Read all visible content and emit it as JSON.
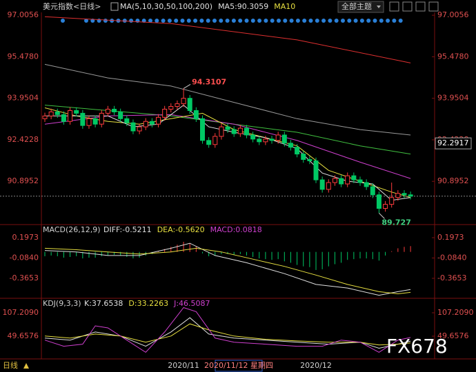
{
  "ui": {
    "theme_button": "全部主题",
    "period": "日线",
    "cursor_date": "2020/11/12 星期四",
    "watermark": "FX678"
  },
  "chart_data": [
    {
      "type": "candlestick",
      "title": "美元指数<日线>",
      "legend": [
        {
          "text": "MA(5,10,30,50,100,200)",
          "color": "#e0e0e0"
        },
        {
          "text": "MA5:90.3059",
          "color": "#e0e0e0"
        },
        {
          "text": "MA10",
          "color": "#e8e040"
        }
      ],
      "categories": [
        null,
        null,
        null,
        null,
        null,
        null,
        null,
        null,
        null,
        null,
        null,
        null,
        null,
        null,
        null,
        null,
        null,
        null,
        null,
        null,
        null,
        null,
        "2020/11",
        null,
        null,
        null,
        null,
        null,
        null,
        null,
        null,
        null,
        null,
        null,
        null,
        null,
        null,
        null,
        null,
        null,
        null,
        null,
        null,
        "2020/12",
        null,
        null,
        null,
        null,
        null,
        null,
        null,
        null,
        null,
        null,
        null,
        null,
        null,
        null,
        null
      ],
      "open": [
        93.2,
        93.3,
        93.45,
        93.35,
        93.1,
        93.5,
        93.4,
        92.95,
        93.2,
        93.0,
        93.4,
        93.55,
        93.45,
        93.2,
        93.05,
        92.75,
        92.9,
        93.1,
        93.0,
        93.25,
        93.55,
        93.65,
        93.75,
        93.95,
        93.5,
        93.2,
        92.4,
        92.25,
        92.55,
        92.9,
        92.8,
        92.65,
        92.85,
        92.6,
        92.45,
        92.35,
        92.45,
        92.4,
        92.6,
        92.3,
        92.15,
        91.9,
        91.7,
        91.65,
        90.95,
        90.6,
        90.85,
        91.0,
        90.8,
        91.1,
        90.95,
        90.85,
        90.7,
        90.4,
        89.9,
        90.05,
        90.3,
        90.45,
        90.4
      ],
      "high": [
        93.42,
        93.57,
        93.57,
        93.47,
        93.62,
        93.62,
        93.52,
        93.32,
        93.32,
        93.52,
        93.67,
        93.67,
        93.57,
        93.32,
        93.17,
        93.02,
        93.22,
        93.22,
        93.37,
        93.67,
        93.77,
        93.87,
        94.3107,
        94.07,
        93.62,
        93.32,
        92.52,
        92.67,
        93.02,
        93.02,
        92.92,
        92.97,
        92.97,
        92.72,
        92.57,
        92.57,
        92.57,
        92.72,
        92.72,
        92.42,
        92.27,
        92.02,
        91.82,
        91.77,
        91.07,
        90.97,
        91.12,
        91.12,
        91.22,
        91.22,
        91.07,
        90.97,
        90.82,
        90.52,
        90.17,
        90.85,
        90.57,
        90.57,
        90.52
      ],
      "low": [
        93.08,
        93.18,
        93.23,
        92.98,
        92.98,
        93.28,
        92.83,
        92.83,
        92.88,
        92.88,
        93.28,
        93.33,
        93.08,
        92.93,
        92.63,
        92.63,
        92.78,
        92.88,
        92.88,
        93.13,
        93.43,
        93.53,
        93.63,
        93.38,
        93.08,
        92.28,
        92.13,
        92.13,
        92.43,
        92.68,
        92.53,
        92.53,
        92.48,
        92.33,
        92.23,
        92.23,
        92.28,
        92.28,
        92.18,
        92.03,
        91.78,
        91.58,
        91.53,
        90.83,
        90.48,
        90.48,
        90.73,
        90.68,
        90.68,
        90.83,
        90.73,
        90.58,
        90.28,
        89.727,
        89.78,
        89.93,
        90.18,
        90.28,
        90.23
      ],
      "close": [
        93.3,
        93.45,
        93.35,
        93.1,
        93.5,
        93.4,
        92.95,
        93.2,
        93.0,
        93.4,
        93.55,
        93.45,
        93.2,
        93.05,
        92.75,
        92.9,
        93.1,
        93.0,
        93.25,
        93.55,
        93.65,
        93.75,
        93.95,
        93.5,
        93.2,
        92.4,
        92.25,
        92.55,
        92.9,
        92.8,
        92.65,
        92.85,
        92.6,
        92.45,
        92.35,
        92.45,
        92.4,
        92.6,
        92.3,
        92.15,
        91.9,
        91.7,
        91.65,
        90.95,
        90.6,
        90.85,
        91.0,
        90.8,
        91.1,
        90.95,
        90.85,
        90.7,
        90.4,
        89.9,
        90.05,
        90.3,
        90.45,
        90.4,
        90.35
      ],
      "up_color": "#ff3c3c",
      "down_color": "#00c864",
      "ylim": [
        89.33,
        97.11
      ],
      "yticks": [
        97.0056,
        {
          "value": 95.478,
          "label": "95.4780"
        },
        93.9504,
        92.4228,
        90.8952
      ],
      "cursor_value": 92.2917,
      "series": [
        {
          "color": "#e03030",
          "x": [
            0,
            20,
            40,
            58
          ],
          "values": [
            96.95,
            96.7,
            96.1,
            95.25
          ]
        },
        {
          "color": "#9a9a9a",
          "x": [
            0,
            10,
            20,
            30,
            40,
            50,
            58
          ],
          "values": [
            95.2,
            94.7,
            94.4,
            93.8,
            93.2,
            92.8,
            92.6
          ]
        },
        {
          "color": "#40c040",
          "x": [
            0,
            10,
            20,
            30,
            40,
            50,
            58
          ],
          "values": [
            93.7,
            93.5,
            93.3,
            93.0,
            92.7,
            92.2,
            91.9
          ]
        },
        {
          "color": "#d040d0",
          "x": [
            0,
            10,
            20,
            30,
            40,
            50,
            58
          ],
          "values": [
            93.0,
            93.3,
            93.35,
            93.0,
            92.4,
            91.6,
            91.0
          ]
        },
        {
          "color": "#e8e040",
          "x": [
            0,
            5,
            10,
            15,
            20,
            25,
            30,
            35,
            40,
            45,
            50,
            55,
            58
          ],
          "values": [
            93.6,
            93.3,
            93.1,
            93.0,
            93.2,
            93.4,
            92.8,
            92.5,
            92.2,
            91.3,
            90.9,
            90.5,
            90.3
          ]
        },
        {
          "color": "#e0e0e0",
          "x": [
            0,
            5,
            10,
            14,
            18,
            22,
            26,
            30,
            35,
            40,
            44,
            48,
            52,
            55,
            58
          ],
          "values": [
            93.3,
            93.3,
            93.3,
            92.9,
            93.0,
            93.7,
            92.9,
            92.7,
            92.5,
            92.1,
            91.2,
            90.9,
            90.8,
            90.2,
            90.3
          ]
        }
      ]
    },
    {
      "type": "macd",
      "title": "MACD(26,12,9)",
      "legend": [
        {
          "text": "DIFF:-0.5211",
          "color": "#e0e0e0"
        },
        {
          "text": "DEA:-0.5620",
          "color": "#e8e040"
        },
        {
          "text": "MACD:0.0818",
          "color": "#d040d0"
        }
      ],
      "ylim": [
        -0.632,
        0.359
      ],
      "yticks": [
        0.1973,
        {
          "value": -0.084,
          "label": "-0.0840"
        },
        -0.3653
      ],
      "values": [
        -0.06,
        -0.05,
        -0.06,
        -0.08,
        -0.07,
        -0.06,
        -0.09,
        -0.08,
        -0.08,
        -0.06,
        -0.05,
        -0.04,
        -0.05,
        -0.07,
        -0.09,
        -0.08,
        -0.05,
        -0.03,
        0.01,
        0.04,
        0.07,
        0.1,
        0.14,
        0.12,
        0.08,
        -0.02,
        -0.06,
        -0.05,
        -0.03,
        -0.03,
        -0.04,
        -0.03,
        -0.05,
        -0.07,
        -0.09,
        -0.1,
        -0.11,
        -0.1,
        -0.13,
        -0.15,
        -0.18,
        -0.2,
        -0.21,
        -0.25,
        -0.24,
        -0.2,
        -0.17,
        -0.15,
        -0.11,
        -0.1,
        -0.09,
        -0.09,
        -0.1,
        -0.12,
        -0.05,
        0.01,
        0.05,
        0.07,
        0.08
      ],
      "series": [
        {
          "color": "#e0e0e0",
          "x": [
            0,
            5,
            10,
            15,
            20,
            23,
            27,
            32,
            38,
            43,
            48,
            53,
            56,
            58
          ],
          "values": [
            0.02,
            0.0,
            -0.05,
            -0.05,
            0.05,
            0.12,
            -0.05,
            -0.15,
            -0.3,
            -0.45,
            -0.5,
            -0.6,
            -0.55,
            -0.52
          ]
        },
        {
          "color": "#e8e040",
          "x": [
            0,
            5,
            10,
            15,
            20,
            24,
            28,
            33,
            38,
            43,
            48,
            53,
            56,
            58
          ],
          "values": [
            0.05,
            0.03,
            0.0,
            -0.03,
            0.0,
            0.05,
            0.0,
            -0.1,
            -0.2,
            -0.32,
            -0.45,
            -0.55,
            -0.58,
            -0.56
          ]
        }
      ]
    },
    {
      "type": "kdj",
      "title": "KDJ(9,3,3)",
      "legend": [
        {
          "text": "K:37.6538",
          "color": "#e0e0e0"
        },
        {
          "text": "D:33.2263",
          "color": "#e8e040"
        },
        {
          "text": "J:46.5087",
          "color": "#d040d0"
        }
      ],
      "ylim": [
        -4.5,
        139.4
      ],
      "yticks": [
        {
          "value": 107.209,
          "label": "107.2090"
        },
        49.6576
      ],
      "series": [
        {
          "color": "#e0e0e0",
          "x": [
            0,
            4,
            8,
            12,
            16,
            20,
            23,
            26,
            30,
            35,
            40,
            45,
            50,
            53,
            56,
            58
          ],
          "values": [
            45,
            40,
            60,
            50,
            25,
            60,
            95,
            55,
            45,
            40,
            35,
            30,
            35,
            20,
            30,
            37.65
          ]
        },
        {
          "color": "#e8e040",
          "x": [
            0,
            4,
            8,
            12,
            16,
            20,
            23,
            26,
            30,
            35,
            40,
            45,
            50,
            53,
            56,
            58
          ],
          "values": [
            50,
            45,
            55,
            50,
            35,
            50,
            80,
            65,
            50,
            42,
            38,
            35,
            35,
            28,
            30,
            33.23
          ]
        },
        {
          "color": "#d040d0",
          "x": [
            0,
            3,
            6,
            8,
            10,
            13,
            16,
            19,
            22,
            24,
            27,
            30,
            35,
            40,
            44,
            47,
            50,
            53,
            56,
            58
          ],
          "values": [
            40,
            25,
            30,
            75,
            70,
            40,
            10,
            60,
            120,
            110,
            45,
            35,
            30,
            25,
            25,
            40,
            35,
            10,
            40,
            46.51
          ]
        }
      ]
    }
  ]
}
